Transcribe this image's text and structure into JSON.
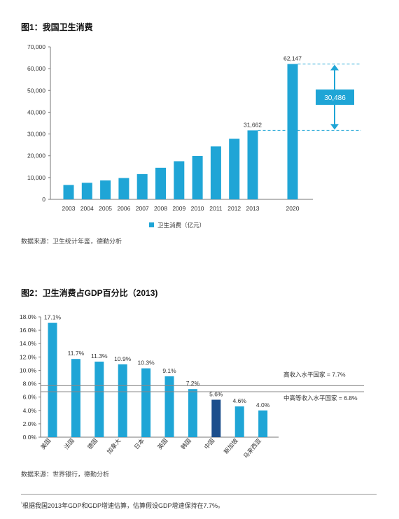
{
  "chart_data": [
    {
      "type": "bar",
      "title": "图1：我国卫生消费",
      "categories": [
        "2003",
        "2004",
        "2005",
        "2006",
        "2007",
        "2008",
        "2009",
        "2010",
        "2011",
        "2012",
        "2013",
        "2020"
      ],
      "values": [
        6600,
        7600,
        8700,
        9800,
        11600,
        14500,
        17500,
        19900,
        24300,
        27800,
        31662,
        62147
      ],
      "ylim": [
        0,
        70000
      ],
      "yticks": [
        "0",
        "10,000",
        "20,000",
        "30,000",
        "40,000",
        "50,000",
        "60,000",
        "70,000"
      ],
      "data_labels": {
        "2013": "31,662",
        "2020": "62,147"
      },
      "annotation": {
        "label": "30,486",
        "from": 31662,
        "to": 62147
      },
      "legend": {
        "name": "卫生消费（亿元）",
        "placement": "bottom"
      },
      "bar_color": "#1fa5d6",
      "source": "数据来源：卫生统计年鉴，德勤分析"
    },
    {
      "type": "bar",
      "title": "图2：卫生消费占GDP百分比（2013)",
      "categories": [
        "美国",
        "法国",
        "德国",
        "加拿大",
        "日本",
        "英国",
        "韩国",
        "中国",
        "新加坡",
        "马来西亚"
      ],
      "values": [
        17.1,
        11.7,
        11.3,
        10.9,
        10.3,
        9.1,
        7.2,
        5.6,
        4.6,
        4.0
      ],
      "value_labels": [
        "17.1%",
        "11.7%",
        "11.3%",
        "10.9%",
        "10.3%",
        "9.1%",
        "7.2%",
        "5.6%",
        "4.6%",
        "4.0%"
      ],
      "ylim": [
        0,
        18
      ],
      "yticks": [
        "0.0%",
        "2.0%",
        "4.0%",
        "6.0%",
        "8.0%",
        "10.0%",
        "12.0%",
        "14.0%",
        "16.0%",
        "18.0%"
      ],
      "reference_lines": [
        {
          "label": "高收入水平国家 = 7.7%",
          "value": 7.7
        },
        {
          "label": "中高等收入水平国家 = 6.8%",
          "value": 6.8
        }
      ],
      "bar_color": "#1fa5d6",
      "highlight_color": "#1c4e8c",
      "highlight_category": "中国",
      "source": "数据来源：世界银行，德勤分析"
    }
  ],
  "footnote": {
    "mark": "¹",
    "text": "根据我国2013年GDP和GDP增速估算，估算假设GDP增速保持在7.7%。"
  }
}
